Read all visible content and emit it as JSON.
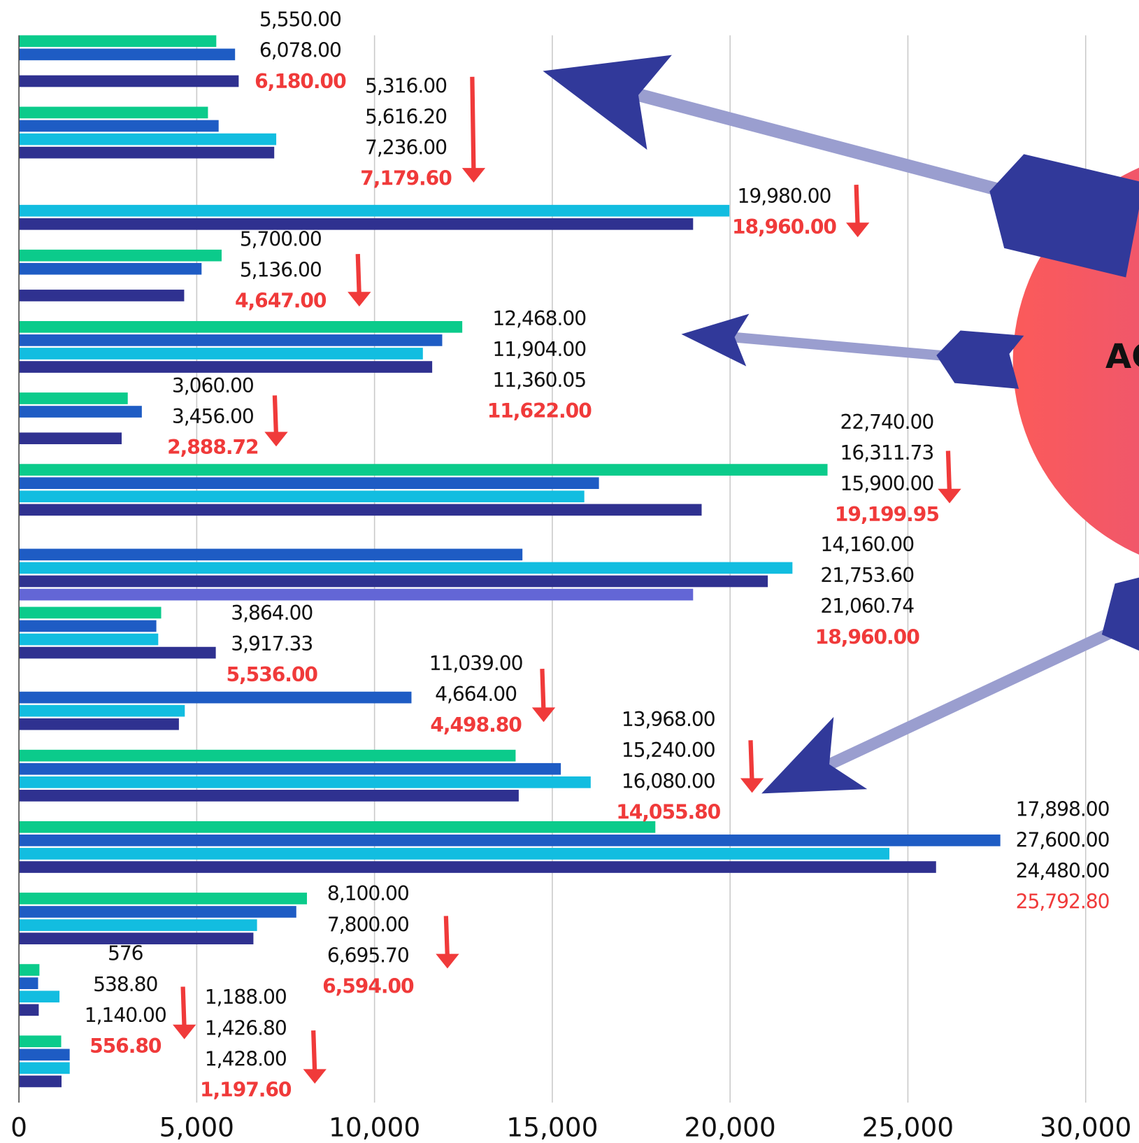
{
  "chart_data": {
    "type": "bar",
    "orientation": "horizontal",
    "series": [
      {
        "color": "#0bcb8b",
        "values": [
          5550,
          5316,
          null,
          5700,
          12468,
          3060,
          22740,
          null,
          4000,
          null,
          13968,
          17898,
          8100,
          576,
          1188
        ],
        "value_labels": [
          "5,550.00",
          "5,316.00",
          null,
          "5,700.00",
          "12,468.00",
          "3,060.00",
          "22,740.00",
          null,
          null,
          null,
          "13,968.00",
          "17,898.00",
          "8,100.00",
          "576",
          "1,188.00"
        ]
      },
      {
        "color": "#1e5cc4",
        "values": [
          6078,
          5616.2,
          null,
          5136,
          11904,
          3456,
          16311.73,
          14160,
          3864,
          11039,
          15240,
          27600,
          7800,
          538.8,
          1426.8
        ],
        "value_labels": [
          "6,078.00",
          "5,616.20",
          null,
          "5,136.00",
          "11,904.00",
          "3,456.00",
          "16,311.73",
          "14,160.00",
          "3,864.00",
          "11,039.00",
          "15,240.00",
          "27,600.00",
          "7,800.00",
          "538.80",
          "1,426.80"
        ]
      },
      {
        "color": "#12bde0",
        "values": [
          null,
          7236,
          19980,
          null,
          11360.05,
          null,
          15900,
          21753.6,
          3917.33,
          4664,
          16080,
          24480,
          6695.7,
          1140,
          1428
        ],
        "value_labels": [
          null,
          "7,236.00",
          "19,980.00",
          null,
          "11,360.05",
          null,
          "15,900.00",
          "21,753.60",
          "3,917.33",
          "4,664.00",
          "16,080.00",
          "24,480.00",
          "6,695.70",
          "1,140.00",
          "1,428.00"
        ]
      },
      {
        "color": "#2f3190",
        "values": [
          6180,
          7179.6,
          18960,
          4647,
          11622,
          2888.72,
          19199.95,
          21060.74,
          5536,
          4498.8,
          14055.8,
          25792.8,
          6594,
          556.8,
          1197.6
        ],
        "value_labels": [
          "6,180.00",
          "7,179.60",
          "18,960.00",
          "4,647.00",
          "11,622.00",
          "2,888.72",
          "19,199.95",
          "21,060.74",
          "5,536.00",
          "4,498.80",
          "14,055.80",
          "25,792.80",
          "6,594.00",
          "556.80",
          "1,197.60"
        ]
      },
      {
        "color": "#6366d6",
        "values": [
          null,
          null,
          null,
          null,
          null,
          null,
          null,
          18960,
          null,
          null,
          null,
          null,
          null,
          null,
          null
        ],
        "value_labels": [
          null,
          null,
          null,
          null,
          null,
          null,
          null,
          "18,960.00",
          null,
          null,
          null,
          null,
          null,
          null,
          null
        ]
      }
    ],
    "xlim": [
      0,
      31500
    ],
    "xticks": [
      0,
      {
        "value": 5000,
        "label": "5,000"
      },
      {
        "value": 10000,
        "label": "10,000"
      },
      {
        "value": 15000,
        "label": "15,000"
      },
      {
        "value": 20000,
        "label": "20,000"
      },
      {
        "value": 25000,
        "label": "25,000"
      },
      {
        "value": 30000,
        "label": "30,000"
      }
    ],
    "grid": true,
    "highlight_color": "#f03a3a",
    "annotation": "AC"
  }
}
